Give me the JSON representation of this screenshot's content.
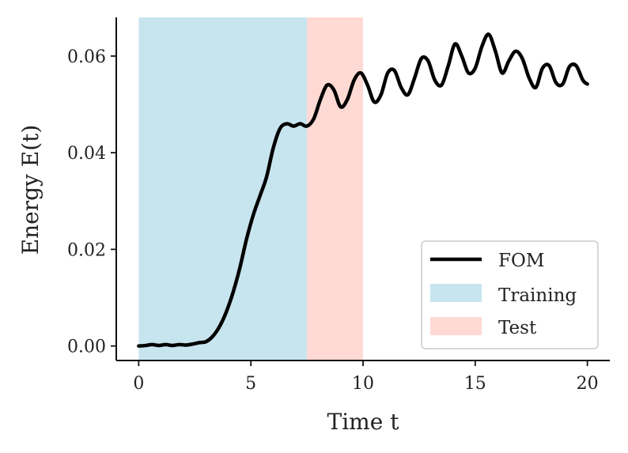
{
  "chart_data": {
    "type": "line",
    "xlabel": "Time t",
    "ylabel": "Energy E(t)",
    "xlim": [
      -1,
      21
    ],
    "ylim": [
      -0.003,
      0.068
    ],
    "xticks": [
      0,
      5,
      10,
      15,
      20
    ],
    "xtick_labels": [
      "0",
      "5",
      "10",
      "15",
      "20"
    ],
    "yticks": [
      0.0,
      0.02,
      0.04,
      0.06
    ],
    "ytick_labels": [
      "0.00",
      "0.02",
      "0.04",
      "0.06"
    ],
    "grid": false,
    "legend_position": "bottom-right",
    "regions": [
      {
        "name": "Training",
        "x_start": 0,
        "x_end": 7.5,
        "color": "#add8e6",
        "opacity": 0.68
      },
      {
        "name": "Test",
        "x_start": 7.5,
        "x_end": 10,
        "color": "#ffcbc2",
        "opacity": 0.7
      }
    ],
    "series": [
      {
        "name": "FOM",
        "color": "#000000",
        "x": [
          0,
          0.3,
          0.6,
          0.9,
          1.2,
          1.5,
          1.8,
          2.1,
          2.4,
          2.7,
          3.0,
          3.3,
          3.6,
          3.9,
          4.2,
          4.5,
          4.8,
          5.1,
          5.4,
          5.7,
          6.0,
          6.3,
          6.6,
          6.9,
          7.2,
          7.5,
          7.8,
          8.1,
          8.4,
          8.7,
          9.0,
          9.3,
          9.6,
          9.9,
          10.2,
          10.5,
          10.8,
          11.1,
          11.4,
          11.7,
          12.0,
          12.3,
          12.6,
          12.9,
          13.2,
          13.5,
          13.8,
          14.1,
          14.4,
          14.7,
          15.0,
          15.3,
          15.6,
          15.9,
          16.2,
          16.5,
          16.8,
          17.1,
          17.4,
          17.7,
          18.0,
          18.3,
          18.6,
          18.9,
          19.2,
          19.5,
          19.8,
          20.0
        ],
        "y": [
          0.0,
          0.0001,
          0.0003,
          0.0001,
          0.0003,
          0.0001,
          0.0003,
          0.0002,
          0.0004,
          0.0007,
          0.0009,
          0.002,
          0.004,
          0.007,
          0.011,
          0.016,
          0.022,
          0.027,
          0.031,
          0.035,
          0.041,
          0.045,
          0.046,
          0.0455,
          0.046,
          0.0455,
          0.047,
          0.051,
          0.054,
          0.053,
          0.0495,
          0.051,
          0.055,
          0.0565,
          0.054,
          0.0505,
          0.052,
          0.0565,
          0.057,
          0.0535,
          0.052,
          0.0555,
          0.0595,
          0.059,
          0.055,
          0.054,
          0.058,
          0.0625,
          0.06,
          0.0565,
          0.0575,
          0.062,
          0.0645,
          0.061,
          0.0565,
          0.059,
          0.061,
          0.0595,
          0.0555,
          0.0535,
          0.0575,
          0.058,
          0.0545,
          0.0542,
          0.0578,
          0.058,
          0.055,
          0.0542
        ]
      }
    ]
  }
}
